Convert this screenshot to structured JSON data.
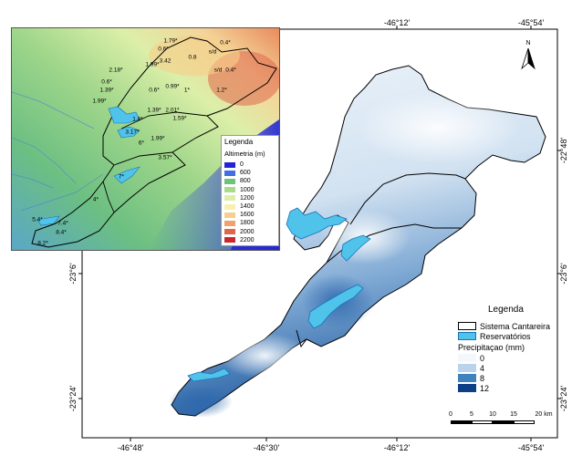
{
  "coordinates": {
    "top": [
      "-46°12'",
      "-45°54'"
    ],
    "bottom": [
      "-46°48'",
      "-46°30'",
      "-46°12'",
      "-45°54'"
    ],
    "left": [
      "-23°6'",
      "-23°24'"
    ],
    "right": [
      "-22°48'",
      "-23°6'",
      "-23°24'"
    ]
  },
  "north_arrow": {
    "label": "N",
    "icon": "north-arrow-icon"
  },
  "inset": {
    "legend_title": "Legenda",
    "legend_subtitle": "Altimetria (m)",
    "classes": [
      {
        "label": "0",
        "color": "#2424d6"
      },
      {
        "label": "600",
        "color": "#3f6fe0"
      },
      {
        "label": "800",
        "color": "#6fc27a"
      },
      {
        "label": "1000",
        "color": "#a8dc8c"
      },
      {
        "label": "1200",
        "color": "#dcefa8"
      },
      {
        "label": "1400",
        "color": "#f7f0b0"
      },
      {
        "label": "1600",
        "color": "#f7cf8a"
      },
      {
        "label": "1800",
        "color": "#f0a26a"
      },
      {
        "label": "2000",
        "color": "#e0664a"
      },
      {
        "label": "2200",
        "color": "#c8282a"
      }
    ],
    "point_labels": [
      "1.79*",
      "0.4*",
      "0.6*",
      "s/d",
      "0.8",
      "1.99*",
      "3.42",
      "2.18*",
      "s/d",
      "0.4*",
      "0.6*",
      "1.39*",
      "0.99*",
      "1*",
      "1.2*",
      "1.99*",
      "0.6*",
      "1.39*",
      "2.01*",
      "1.8*",
      "1.59*",
      "3.17*",
      "1.99*",
      "6*",
      "3.57*",
      "7*",
      "4*",
      "5.4*",
      "7.4*",
      "8.4*",
      "8.2*"
    ]
  },
  "legend": {
    "title": "Legenda",
    "items": [
      {
        "label": "Sistema Cantareira",
        "color": "#ffffff",
        "border": "#000000"
      },
      {
        "label": "Reservatórios",
        "color": "#4fc3ea",
        "border": "#1a73b8"
      }
    ],
    "precip_title": "Precipitaçao (mm)",
    "precip_classes": [
      {
        "label": "0",
        "color": "#f4f8fc"
      },
      {
        "label": "4",
        "color": "#b9d3ea"
      },
      {
        "label": "8",
        "color": "#3f82be"
      },
      {
        "label": "12",
        "color": "#0c3f86"
      }
    ]
  },
  "scalebar": {
    "ticks": [
      "0",
      "5",
      "10",
      "15",
      "20 km"
    ]
  }
}
